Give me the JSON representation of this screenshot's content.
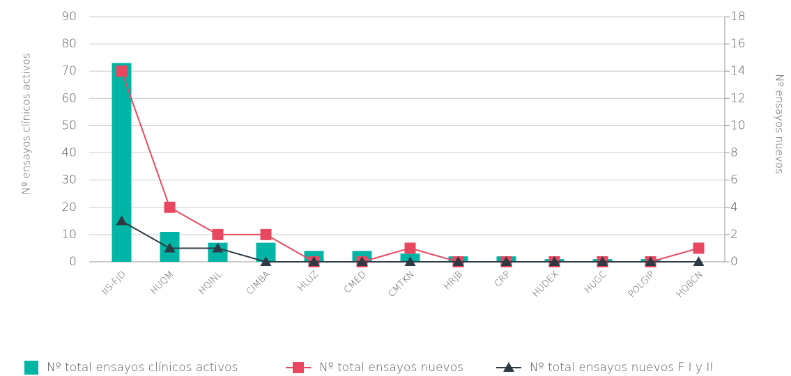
{
  "chart_data": {
    "type": "bar",
    "categories": [
      "IIS-FJD",
      "HUQM",
      "HQINL",
      "CIMBA",
      "HLUZ",
      "CMED",
      "CMTKN",
      "HRJB",
      "CRP",
      "HUDEX",
      "HUGC",
      "POLGIP",
      "HQBCN"
    ],
    "series": [
      {
        "name": "Nº total ensayos clínicos activos",
        "type": "bar",
        "color": "#00b5a5",
        "values": [
          73,
          11,
          7,
          7,
          4,
          4,
          3,
          2,
          2,
          1,
          1,
          1,
          0
        ]
      },
      {
        "name": "Nº total ensayos nuevos",
        "type": "line",
        "marker": "square",
        "axis": "y2",
        "color": "#e8485f",
        "values": [
          14,
          4,
          2,
          2,
          0,
          0,
          1,
          0,
          0,
          0,
          0,
          0,
          1
        ]
      },
      {
        "name": "Nº total ensayos nuevos F I y II",
        "type": "line",
        "marker": "triangle",
        "axis": "y2",
        "color": "#2d3a45",
        "values": [
          3,
          1,
          1,
          0,
          0,
          0,
          0,
          0,
          0,
          0,
          0,
          0,
          0
        ]
      }
    ],
    "ylabel": "Nº ensayos clínicos activos",
    "y2label": "Nº ensayos nuevos",
    "ylim": [
      0,
      90
    ],
    "yticks": [
      0,
      10,
      20,
      30,
      40,
      50,
      60,
      70,
      80,
      90
    ],
    "y2lim": [
      0,
      18
    ],
    "y2ticks": [
      0,
      2,
      4,
      6,
      8,
      10,
      12,
      14,
      16,
      18
    ],
    "grid": true,
    "legend": "bottom"
  }
}
